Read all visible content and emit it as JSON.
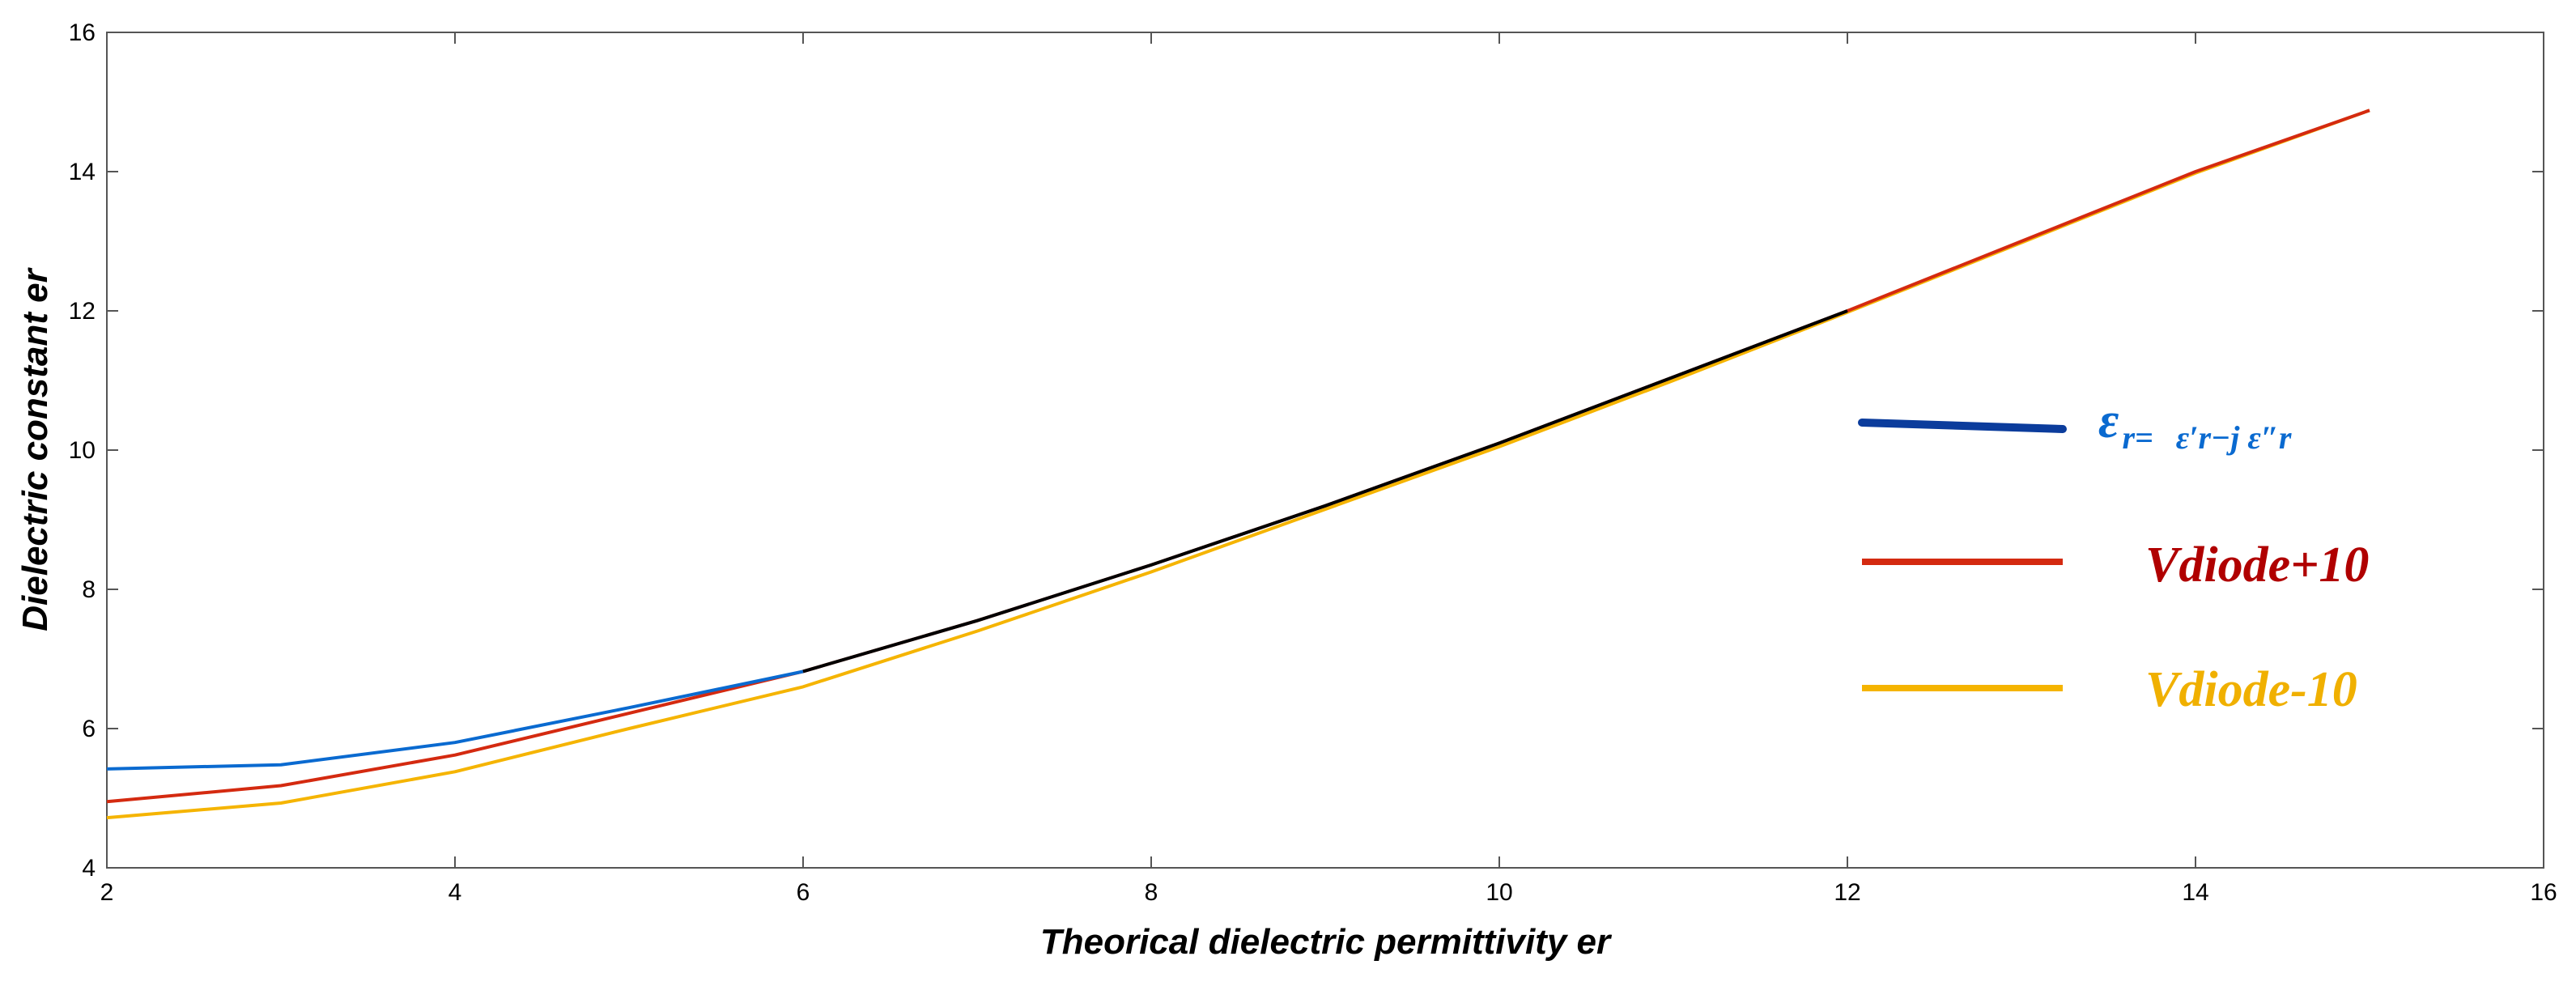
{
  "chart_data": {
    "type": "line",
    "title": "",
    "xlabel": "Theorical dielectric permittivity er",
    "ylabel": "Dielectric constant er",
    "xlim": [
      2,
      16
    ],
    "ylim": [
      4,
      16
    ],
    "x_ticks": [
      2,
      4,
      6,
      8,
      10,
      12,
      14,
      16
    ],
    "y_ticks": [
      4,
      6,
      8,
      10,
      12,
      14,
      16
    ],
    "grid": false,
    "legend_position": "right",
    "legend": {
      "item1_main": "ε",
      "item1_sub": "r=",
      "item1_rest": "ε′r−j ε″r",
      "item2": "Vdiode+10",
      "item3": "Vdiode-10"
    },
    "colors": {
      "blue": "#0a6ad0",
      "blue_legend": "#0b3c9c",
      "black": "#000000",
      "red": "#d42a10",
      "red_text": "#b00000",
      "orange": "#f5b400",
      "orange_text": "#f0b000"
    },
    "series": [
      {
        "name": "εr = ε′r − j ε″r",
        "x": [
          2,
          3,
          4,
          5,
          6,
          7,
          8,
          9,
          10,
          11,
          12
        ],
        "y": [
          5.42,
          5.48,
          5.8,
          6.3,
          6.82,
          7.55,
          8.35,
          9.2,
          10.1,
          11.05,
          12.0
        ]
      },
      {
        "name": "Vdiode+10",
        "x": [
          2,
          3,
          4,
          5,
          6,
          7,
          8,
          9,
          10,
          11,
          12,
          13,
          14,
          15
        ],
        "y": [
          4.95,
          5.18,
          5.62,
          6.22,
          6.82,
          7.55,
          8.35,
          9.2,
          10.1,
          11.05,
          12.0,
          13.0,
          14.0,
          14.88
        ]
      },
      {
        "name": "Vdiode-10",
        "x": [
          2,
          3,
          4,
          5,
          6,
          7,
          8,
          9,
          10,
          11,
          12,
          13,
          14,
          15
        ],
        "y": [
          4.72,
          4.93,
          5.38,
          6.0,
          6.6,
          7.4,
          8.25,
          9.15,
          10.05,
          11.0,
          11.98,
          12.98,
          13.98,
          14.88
        ]
      }
    ]
  }
}
